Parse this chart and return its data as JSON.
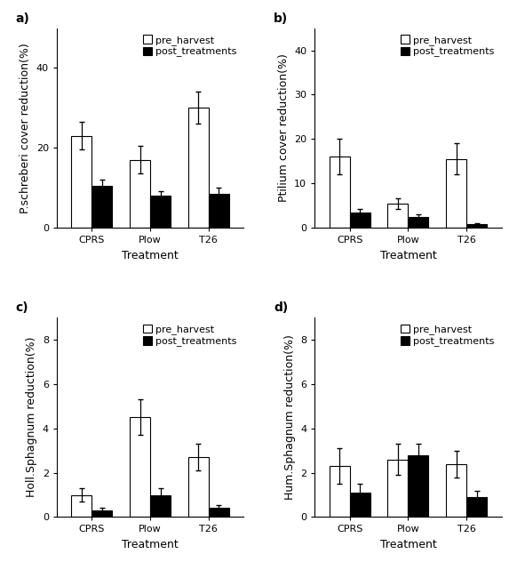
{
  "panels": [
    {
      "label": "a)",
      "ylabel": "P.schreberi cover reduction(%)",
      "xlabel": "Treatment",
      "categories": [
        "CPRS",
        "Plow",
        "T26"
      ],
      "pre_harvest": [
        23.0,
        17.0,
        30.0
      ],
      "pre_harvest_se": [
        3.5,
        3.5,
        4.0
      ],
      "post_treatments": [
        10.5,
        8.0,
        8.5
      ],
      "post_treatments_se": [
        1.5,
        1.2,
        1.5
      ],
      "ylim": [
        0,
        50
      ],
      "yticks": [
        0,
        20,
        40
      ]
    },
    {
      "label": "b)",
      "ylabel": "Ptilium cover reduction(%)",
      "xlabel": "Treatment",
      "categories": [
        "CPRS",
        "Plow",
        "T26"
      ],
      "pre_harvest": [
        16.0,
        5.5,
        15.5
      ],
      "pre_harvest_se": [
        4.0,
        1.2,
        3.5
      ],
      "post_treatments": [
        3.5,
        2.5,
        0.8
      ],
      "post_treatments_se": [
        0.8,
        0.5,
        0.3
      ],
      "ylim": [
        0,
        45
      ],
      "yticks": [
        0,
        10,
        20,
        30,
        40
      ]
    },
    {
      "label": "c)",
      "ylabel": "Holl.Sphagnum reduction(%)",
      "xlabel": "Treatment",
      "categories": [
        "CPRS",
        "Plow",
        "T26"
      ],
      "pre_harvest": [
        1.0,
        4.5,
        2.7
      ],
      "pre_harvest_se": [
        0.3,
        0.8,
        0.6
      ],
      "post_treatments": [
        0.3,
        1.0,
        0.4
      ],
      "post_treatments_se": [
        0.1,
        0.3,
        0.15
      ],
      "ylim": [
        0,
        9
      ],
      "yticks": [
        0,
        2,
        4,
        6,
        8
      ]
    },
    {
      "label": "d)",
      "ylabel": "Hum.Sphagnum reduction(%)",
      "xlabel": "Treatment",
      "categories": [
        "CPRS",
        "Plow",
        "T26"
      ],
      "pre_harvest": [
        2.3,
        2.6,
        2.4
      ],
      "pre_harvest_se": [
        0.8,
        0.7,
        0.6
      ],
      "post_treatments": [
        1.1,
        2.8,
        0.9
      ],
      "post_treatments_se": [
        0.4,
        0.5,
        0.3
      ],
      "ylim": [
        0,
        9
      ],
      "yticks": [
        0,
        2,
        4,
        6,
        8
      ]
    }
  ],
  "pre_color": "white",
  "post_color": "black",
  "bar_edge_color": "black",
  "bar_width": 0.35,
  "legend_labels": [
    "pre_harvest",
    "post_treatments"
  ],
  "background_color": "white",
  "tick_fontsize": 8,
  "label_fontsize": 9,
  "legend_fontsize": 8,
  "panel_label_fontsize": 10
}
